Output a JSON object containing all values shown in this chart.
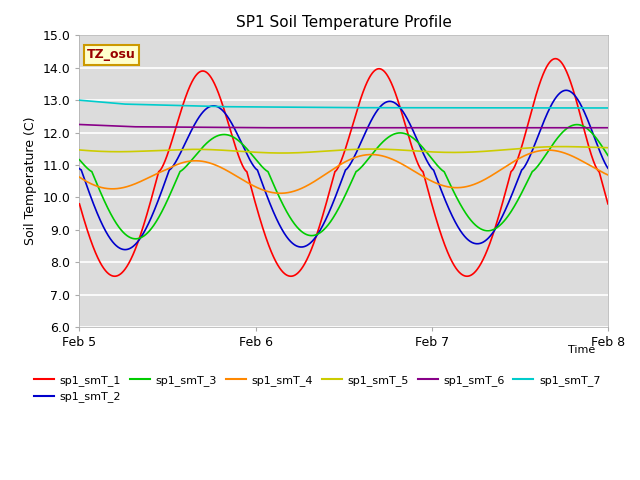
{
  "title": "SP1 Soil Temperature Profile",
  "xlabel": "Time",
  "ylabel": "Soil Temperature (C)",
  "ylim": [
    6.0,
    15.0
  ],
  "yticks": [
    6.0,
    7.0,
    8.0,
    9.0,
    10.0,
    11.0,
    12.0,
    13.0,
    14.0,
    15.0
  ],
  "xlim_days": [
    0,
    3.0
  ],
  "xtick_positions": [
    0,
    1,
    2,
    3
  ],
  "xtick_labels": [
    "Feb 5",
    "Feb 6",
    "Feb 7",
    "Feb 8"
  ],
  "tz_label": "TZ_osu",
  "background_color": "#dcdcdc",
  "colors": {
    "sp1_smT_1": "#ff0000",
    "sp1_smT_2": "#0000cc",
    "sp1_smT_3": "#00cc00",
    "sp1_smT_4": "#ff8800",
    "sp1_smT_5": "#cccc00",
    "sp1_smT_6": "#880088",
    "sp1_smT_7": "#00cccc"
  },
  "legend_labels": [
    "sp1_smT_1",
    "sp1_smT_2",
    "sp1_smT_3",
    "sp1_smT_4",
    "sp1_smT_5",
    "sp1_smT_6",
    "sp1_smT_7"
  ]
}
